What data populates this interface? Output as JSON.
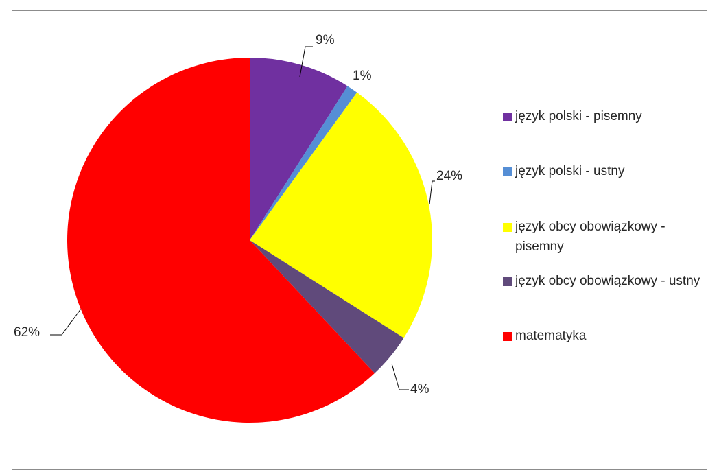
{
  "chart_data": {
    "type": "pie",
    "categories": [
      "język polski - pisemny",
      "język polski - ustny",
      "język obcy obowiązkowy - pisemny",
      "język obcy obowiązkowy - ustny",
      "matematyka"
    ],
    "values": [
      9,
      1,
      24,
      4,
      62
    ],
    "data_labels": [
      "9%",
      "1%",
      "24%",
      "4%",
      "62%"
    ],
    "colors": [
      "#7030a0",
      "#558ed5",
      "#ffff00",
      "#604a7b",
      "#ff0000"
    ],
    "start_angle": "12 o'clock",
    "direction": "clockwise",
    "legend_position": "right",
    "title": ""
  }
}
